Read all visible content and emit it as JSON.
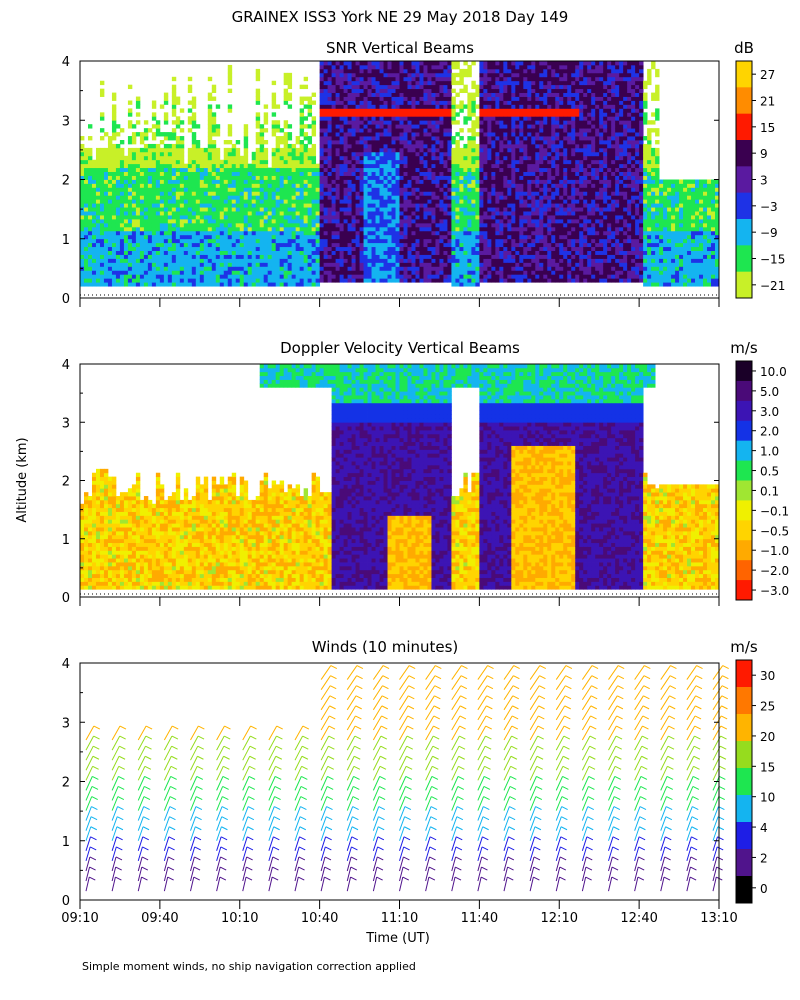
{
  "figure": {
    "title": "GRAINEX ISS3 York NE  29 May 2018 Day 149",
    "footnote": "Simple moment winds, no ship navigation correction applied",
    "ylabel": "Altitude (km)",
    "xlabel": "Time (UT)",
    "x_ticks": [
      "09:10",
      "09:40",
      "10:10",
      "10:40",
      "11:10",
      "11:40",
      "12:10",
      "12:40",
      "13:10"
    ]
  },
  "chart_data": [
    {
      "type": "heatmap",
      "title": "SNR Vertical Beams",
      "colorbar_unit": "dB",
      "colorbar_labels": [
        "27",
        "21",
        "15",
        "9",
        "3",
        "−3",
        "−9",
        "−15",
        "−21"
      ],
      "colorbar_colors": [
        "#ffd400",
        "#ff8c00",
        "#ff1a00",
        "#3a0050",
        "#5a1aa0",
        "#1e32e6",
        "#14b4f0",
        "#1ee650",
        "#c8f028"
      ],
      "x_range": [
        "09:10",
        "13:10"
      ],
      "ylim": [
        0,
        4
      ],
      "y_ticks": [
        0,
        1,
        2,
        3,
        4
      ],
      "grid": false
    },
    {
      "type": "heatmap",
      "title": "Doppler Velocity Vertical Beams",
      "colorbar_unit": "m/s",
      "colorbar_labels": [
        "10.0",
        "5.0",
        "3.0",
        "2.0",
        "1.0",
        "0.5",
        "0.1",
        "−0.1",
        "−0.5",
        "−1.0",
        "−2.0",
        "−3.0"
      ],
      "colorbar_colors": [
        "#1a0028",
        "#4a0a78",
        "#3c14b4",
        "#1432e6",
        "#14b4f0",
        "#1ee650",
        "#a0e632",
        "#f0f000",
        "#ffd400",
        "#ffaa00",
        "#ff6400",
        "#ff1a00"
      ],
      "x_range": [
        "09:10",
        "13:10"
      ],
      "ylim": [
        0,
        4
      ],
      "y_ticks": [
        0,
        1,
        2,
        3,
        4
      ],
      "grid": false
    },
    {
      "type": "scatter",
      "title": "Winds (10 minutes)",
      "colorbar_unit": "m/s",
      "colorbar_labels": [
        "30",
        "25",
        "20",
        "15",
        "10",
        "4",
        "2",
        "0"
      ],
      "colorbar_colors": [
        "#ff1a00",
        "#ff7800",
        "#ffb400",
        "#96dc1e",
        "#1ee650",
        "#14b4f0",
        "#1e1ee6",
        "#50148c",
        "#000000"
      ],
      "x_range": [
        "09:10",
        "13:10"
      ],
      "ylim": [
        0,
        4
      ],
      "y_ticks": [
        0,
        1,
        2,
        3,
        4
      ],
      "grid": false
    }
  ]
}
